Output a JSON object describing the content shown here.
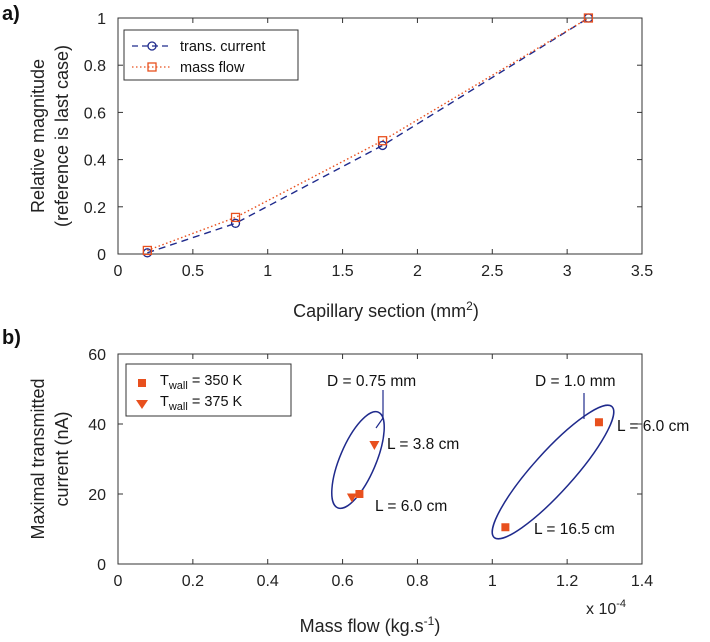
{
  "chart_data": [
    {
      "panel": "a)",
      "type": "line",
      "xlabel": "Capillary section (mm",
      "xlabel_sup": "2",
      "xlabel_end": ")",
      "ylabel_line1": "Relative magnitude",
      "ylabel_line2": "(reference is last case)",
      "xlim": [
        0,
        3.5
      ],
      "ylim": [
        0,
        1
      ],
      "xticks": [
        "0",
        "0.5",
        "1",
        "1.5",
        "2",
        "2.5",
        "3",
        "3.5"
      ],
      "yticks": [
        "0",
        "0.2",
        "0.4",
        "0.6",
        "0.8",
        "1"
      ],
      "legend_position": "top-left",
      "series": [
        {
          "name": "trans. current",
          "color": "#1f2a8c",
          "line": "dashed",
          "marker": "circle",
          "x": [
            0.196,
            0.785,
            1.767,
            3.142
          ],
          "y": [
            0.005,
            0.13,
            0.46,
            1.0
          ]
        },
        {
          "name": "mass flow",
          "color": "#e8501e",
          "line": "dotted",
          "marker": "square",
          "x": [
            0.196,
            0.785,
            1.767,
            3.142
          ],
          "y": [
            0.015,
            0.155,
            0.48,
            1.0
          ]
        }
      ]
    },
    {
      "panel": "b)",
      "type": "scatter",
      "xlabel": "Mass flow (kg.s",
      "xlabel_sup": "-1",
      "xlabel_end": ")",
      "ylabel_line1": "Maximal transmitted",
      "ylabel_line2": "current (nA)",
      "xlim": [
        0,
        1.4
      ],
      "ylim": [
        0,
        60
      ],
      "x_multiplier": "x 10",
      "x_multiplier_exp": "-4",
      "xticks": [
        "0",
        "0.2",
        "0.4",
        "0.6",
        "0.8",
        "1",
        "1.2",
        "1.4"
      ],
      "yticks": [
        "0",
        "20",
        "40",
        "60"
      ],
      "legend_position": "top-left",
      "series": [
        {
          "name_main": "T",
          "name_sub": "wall",
          "name_rest": " = 350 K",
          "marker": "square",
          "color": "#e8501e",
          "x": [
            0.645,
            1.035,
            1.285
          ],
          "y": [
            20,
            10.5,
            40.5
          ]
        },
        {
          "name_main": "T",
          "name_sub": "wall",
          "name_rest": " = 375 K",
          "marker": "triangle-down",
          "color": "#e8501e",
          "x": [
            0.625,
            0.685
          ],
          "y": [
            19,
            34
          ]
        }
      ],
      "annotations": [
        "D = 0.75 mm",
        "D = 1.0 mm",
        "L = 3.8 cm",
        "L = 6.0 cm",
        "L = 6.0 cm",
        "L = 16.5 cm"
      ],
      "ellipse_color": "#1f2a8c"
    }
  ]
}
